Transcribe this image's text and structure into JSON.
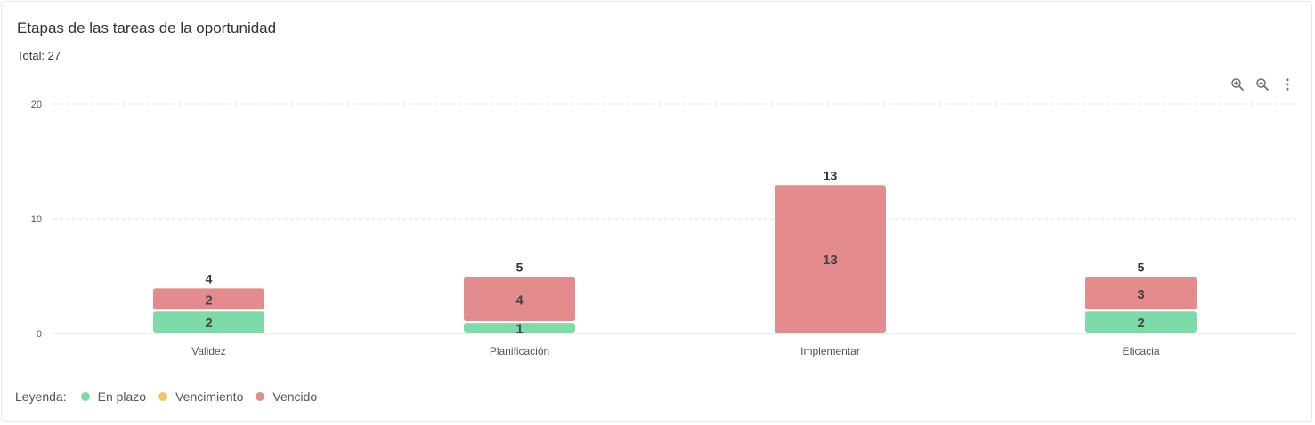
{
  "header": {
    "title": "Etapas de las tareas de la oportunidad",
    "total": "Total: 27"
  },
  "toolbar": {
    "icons": [
      "zoom-in-icon",
      "zoom-out-icon",
      "more-vert-icon"
    ]
  },
  "legend": {
    "label": "Leyenda:",
    "items": [
      {
        "name": "En plazo",
        "color": "#7ddba9"
      },
      {
        "name": "Vencimiento",
        "color": "#f2c56b"
      },
      {
        "name": "Vencido",
        "color": "#e38b8d"
      }
    ]
  },
  "chart_data": {
    "type": "bar",
    "stacked": true,
    "title": "Etapas de las tareas de la oportunidad",
    "categories": [
      "Validez",
      "Planificación",
      "Implementar",
      "Eficacia"
    ],
    "series": [
      {
        "name": "En plazo",
        "color": "#7ddba9",
        "values": [
          2,
          1,
          0,
          2
        ]
      },
      {
        "name": "Vencimiento",
        "color": "#f2c56b",
        "values": [
          0,
          0,
          0,
          0
        ]
      },
      {
        "name": "Vencido",
        "color": "#e38b8d",
        "values": [
          2,
          4,
          13,
          3
        ]
      }
    ],
    "totals": [
      4,
      5,
      13,
      5
    ],
    "ylim": [
      0,
      20
    ],
    "yticks": [
      0,
      10,
      20
    ],
    "grid": true,
    "legend_position": "bottom-left"
  }
}
